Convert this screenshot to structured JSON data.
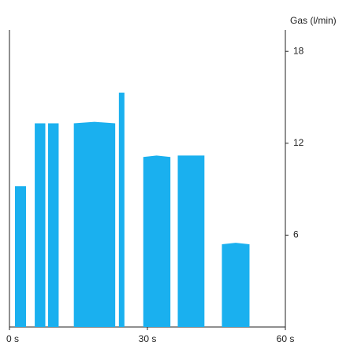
{
  "chart_data": {
    "type": "area",
    "y_label": "Gas (l/min)",
    "x": [
      1.2,
      3.6,
      4.5,
      5.5,
      7.8,
      8.1,
      8.4,
      10.7,
      12.3,
      14,
      18.5,
      23,
      23.4,
      23.8,
      25,
      27,
      29.1,
      32,
      35,
      35.8,
      36.6,
      39.5,
      42.4,
      44.3,
      46.2,
      49.2,
      52.2
    ],
    "series": [
      {
        "name": "Gas",
        "color": "#1ab0ef",
        "values": [
          9.2,
          9.2,
          null,
          13.3,
          13.3,
          null,
          13.3,
          13.3,
          null,
          13.3,
          13.4,
          13.3,
          null,
          15.3,
          15.3,
          null,
          11.1,
          11.2,
          11.1,
          null,
          11.2,
          11.2,
          11.2,
          null,
          5.4,
          5.5,
          5.4
        ]
      }
    ],
    "xlim": [
      0,
      60
    ],
    "xticks": [
      {
        "value": 0,
        "label": "0 s"
      },
      {
        "value": 30,
        "label": "30 s"
      },
      {
        "value": 60,
        "label": "60 s"
      }
    ],
    "ylim": [
      0,
      19.4
    ],
    "yticks": [
      6,
      12,
      18
    ]
  }
}
